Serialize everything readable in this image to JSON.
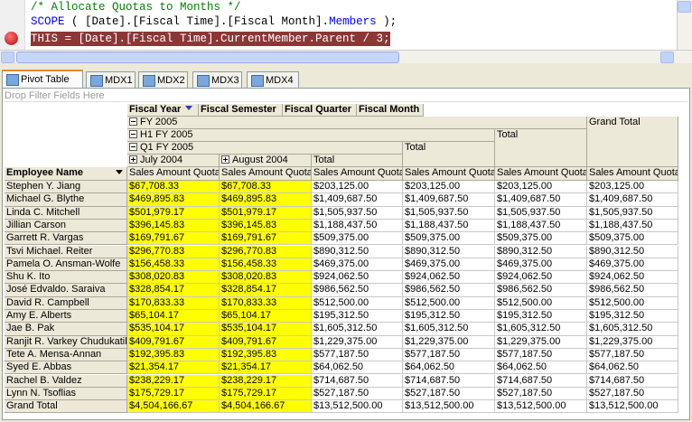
{
  "editor": {
    "lines": [
      [
        "/* Allocate Quotas to Months */"
      ],
      [
        "SCOPE",
        " ( [Date].[Fiscal Time].[Fiscal Month].",
        "Members",
        " );"
      ],
      [
        "THIS = [Date].[Fiscal Time].CurrentMember.Parent / 3;"
      ]
    ]
  },
  "tabs": [
    "Pivot Table",
    "MDX1",
    "MDX2",
    "MDX3",
    "MDX4"
  ],
  "pivot": {
    "filter_area": "Drop Filter Fields Here",
    "column_fields": [
      "Fiscal Year",
      "Fiscal Semester",
      "Fiscal Quarter",
      "Fiscal Month"
    ],
    "fiscal_year": "FY 2005",
    "semester": "H1 FY 2005",
    "quarter": "Q1 FY 2005",
    "months": [
      "July 2004",
      "August 2004"
    ],
    "quarter_total": "Total",
    "semester_total": "Total",
    "year_total": "Total",
    "grand_total": "Grand Total",
    "row_field": "Employee Name",
    "measures": [
      "Sales Amount Quota",
      "Sales Amount Quota",
      "Sales Amount Quota",
      "Sales Amount Quota",
      "Sales Amount Quota",
      "Sales Amount Quota"
    ],
    "rows": [
      [
        "Stephen Y. Jiang",
        "$67,708.33",
        "$67,708.33",
        "$203,125.00",
        "$203,125.00",
        "$203,125.00",
        "$203,125.00"
      ],
      [
        "Michael G. Blythe",
        "$469,895.83",
        "$469,895.83",
        "$1,409,687.50",
        "$1,409,687.50",
        "$1,409,687.50",
        "$1,409,687.50"
      ],
      [
        "Linda C. Mitchell",
        "$501,979.17",
        "$501,979.17",
        "$1,505,937.50",
        "$1,505,937.50",
        "$1,505,937.50",
        "$1,505,937.50"
      ],
      [
        "Jillian Carson",
        "$396,145.83",
        "$396,145.83",
        "$1,188,437.50",
        "$1,188,437.50",
        "$1,188,437.50",
        "$1,188,437.50"
      ],
      [
        "Garrett R. Vargas",
        "$169,791.67",
        "$169,791.67",
        "$509,375.00",
        "$509,375.00",
        "$509,375.00",
        "$509,375.00"
      ],
      [
        "Tsvi Michael. Reiter",
        "$296,770.83",
        "$296,770.83",
        "$890,312.50",
        "$890,312.50",
        "$890,312.50",
        "$890,312.50"
      ],
      [
        "Pamela O. Ansman-Wolfe",
        "$156,458.33",
        "$156,458.33",
        "$469,375.00",
        "$469,375.00",
        "$469,375.00",
        "$469,375.00"
      ],
      [
        "Shu K. Ito",
        "$308,020.83",
        "$308,020.83",
        "$924,062.50",
        "$924,062.50",
        "$924,062.50",
        "$924,062.50"
      ],
      [
        "José Edvaldo. Saraiva",
        "$328,854.17",
        "$328,854.17",
        "$986,562.50",
        "$986,562.50",
        "$986,562.50",
        "$986,562.50"
      ],
      [
        "David R. Campbell",
        "$170,833.33",
        "$170,833.33",
        "$512,500.00",
        "$512,500.00",
        "$512,500.00",
        "$512,500.00"
      ],
      [
        "Amy E. Alberts",
        "$65,104.17",
        "$65,104.17",
        "$195,312.50",
        "$195,312.50",
        "$195,312.50",
        "$195,312.50"
      ],
      [
        "Jae B. Pak",
        "$535,104.17",
        "$535,104.17",
        "$1,605,312.50",
        "$1,605,312.50",
        "$1,605,312.50",
        "$1,605,312.50"
      ],
      [
        "Ranjit R. Varkey Chudukatil",
        "$409,791.67",
        "$409,791.67",
        "$1,229,375.00",
        "$1,229,375.00",
        "$1,229,375.00",
        "$1,229,375.00"
      ],
      [
        "Tete A. Mensa-Annan",
        "$192,395.83",
        "$192,395.83",
        "$577,187.50",
        "$577,187.50",
        "$577,187.50",
        "$577,187.50"
      ],
      [
        "Syed E. Abbas",
        "$21,354.17",
        "$21,354.17",
        "$64,062.50",
        "$64,062.50",
        "$64,062.50",
        "$64,062.50"
      ],
      [
        "Rachel B. Valdez",
        "$238,229.17",
        "$238,229.17",
        "$714,687.50",
        "$714,687.50",
        "$714,687.50",
        "$714,687.50"
      ],
      [
        "Lynn N. Tsoflias",
        "$175,729.17",
        "$175,729.17",
        "$527,187.50",
        "$527,187.50",
        "$527,187.50",
        "$527,187.50"
      ],
      [
        "Grand Total",
        "$4,504,166.67",
        "$4,504,166.67",
        "$13,512,500.00",
        "$13,512,500.00",
        "$13,512,500.00",
        "$13,512,500.00"
      ]
    ]
  }
}
